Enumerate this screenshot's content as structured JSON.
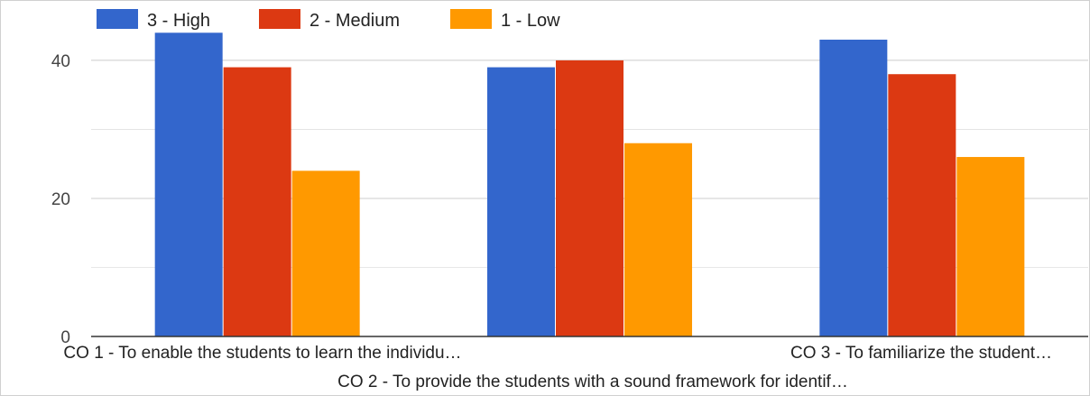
{
  "chart_data": {
    "type": "bar",
    "categories": [
      "CO 1 - To enable the students to learn the individu…",
      "CO 2 - To provide the students with a sound framework for identif…",
      "CO 3 - To familiarize the student…"
    ],
    "series": [
      {
        "name": "3 - High",
        "color": "#3366cc",
        "values": [
          44,
          39,
          43
        ]
      },
      {
        "name": "2 - Medium",
        "color": "#dc3912",
        "values": [
          39,
          40,
          38
        ]
      },
      {
        "name": "1 - Low",
        "color": "#ff9900",
        "values": [
          24,
          28,
          26
        ]
      }
    ],
    "yticks": [
      0,
      20,
      40
    ],
    "ylim": [
      0,
      46
    ],
    "grid": true,
    "legend_position": "top-left"
  }
}
